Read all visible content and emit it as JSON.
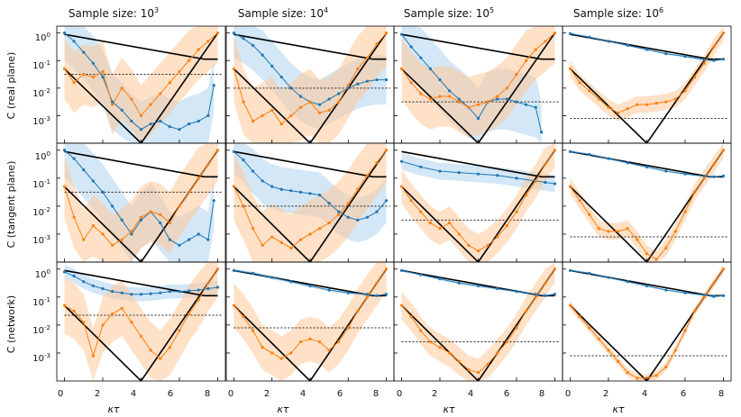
{
  "figure": {
    "column_titles": [
      {
        "base": "Sample size: 10",
        "exp": "3"
      },
      {
        "base": "Sample size: 10",
        "exp": "4"
      },
      {
        "base": "Sample size: 10",
        "exp": "5"
      },
      {
        "base": "Sample size: 10",
        "exp": "6"
      }
    ],
    "row_labels": [
      "C  (real plane)",
      "C  (tangent plane)",
      "C  (network)"
    ],
    "xlabel": "κτ",
    "x_ticks": [
      "0",
      "2",
      "4",
      "6",
      "8"
    ],
    "y_ticks": [
      {
        "base": "10",
        "exp": "0"
      },
      {
        "base": "10",
        "exp": "-1"
      },
      {
        "base": "10",
        "exp": "-2"
      },
      {
        "base": "10",
        "exp": "-3"
      }
    ]
  },
  "chart_data": {
    "type": "line",
    "description_series": [
      "theory curves (black)",
      "blue estimator with band",
      "orange estimator with band",
      "noise floor (dotted)"
    ],
    "xlim": [
      -0.4,
      8.4
    ],
    "ylim_log10": [
      -4.0,
      0.25
    ],
    "colors": {
      "blue": "#1f77b4",
      "orange": "#ff7f0e",
      "blue_band": "#aed3ee",
      "orange_band": "#ffc999",
      "theory": "#000000"
    },
    "floors_log10": [
      [
        -1.5,
        -2.0,
        -2.5,
        -3.1
      ],
      [
        -1.5,
        -2.0,
        -2.5,
        -3.1
      ],
      [
        -1.65,
        -2.1,
        -2.6,
        -3.1
      ]
    ],
    "theory_upper": {
      "x": [
        0,
        7.3,
        8
      ],
      "log10y": [
        -0.05,
        -0.95,
        -0.95
      ]
    },
    "theory_decay": {
      "x": [
        0,
        4
      ],
      "log10y": [
        -1.3,
        -4.3
      ]
    },
    "theory_rise": {
      "x": [
        4,
        8
      ],
      "log10y": [
        -4.3,
        0
      ]
    },
    "blue_panels": [
      {
        "x": [
          0,
          0.5,
          1,
          1.5,
          2,
          2.5,
          3,
          3.5,
          4,
          4.5,
          5,
          5.5,
          6,
          6.5,
          7,
          7.5,
          7.8
        ],
        "log10y": [
          0,
          -0.3,
          -0.7,
          -1.1,
          -1.6,
          -2.5,
          -2.8,
          -3.2,
          -3.5,
          -3.3,
          -3.2,
          -3.4,
          -3.5,
          -3.3,
          -3.2,
          -3.0,
          -1.9
        ]
      },
      {
        "x": [
          0,
          0.5,
          1,
          1.5,
          2,
          2.5,
          3,
          3.5,
          4,
          4.5,
          5,
          5.5,
          6,
          6.5,
          7,
          7.5,
          8
        ],
        "log10y": [
          0,
          -0.2,
          -0.45,
          -0.8,
          -1.2,
          -1.6,
          -2.0,
          -2.3,
          -2.5,
          -2.6,
          -2.4,
          -2.2,
          -2.0,
          -1.85,
          -1.75,
          -1.7,
          -1.7
        ]
      },
      {
        "x": [
          0,
          0.5,
          1,
          1.5,
          2,
          2.5,
          3,
          3.5,
          4,
          4.5,
          5,
          5.5,
          6,
          6.5,
          7,
          7.3
        ],
        "log10y": [
          -0.05,
          -0.5,
          -0.9,
          -1.3,
          -1.7,
          -2.1,
          -2.4,
          -2.7,
          -3.1,
          -2.5,
          -2.4,
          -2.4,
          -2.5,
          -2.6,
          -2.7,
          -3.6
        ]
      },
      {
        "x": [
          0,
          1,
          2,
          3,
          4,
          5,
          6,
          7,
          7.5,
          8
        ],
        "log10y": [
          -0.02,
          -0.15,
          -0.3,
          -0.45,
          -0.6,
          -0.75,
          -0.85,
          -0.97,
          -1.0,
          -0.95
        ]
      },
      {
        "x": [
          0,
          0.5,
          1,
          1.5,
          2,
          2.5,
          3,
          3.5,
          4,
          4.5,
          5,
          5.5,
          6,
          6.5,
          7,
          7.5,
          7.8
        ],
        "log10y": [
          0,
          -0.3,
          -0.7,
          -1.1,
          -1.5,
          -2.0,
          -2.5,
          -3.0,
          -2.5,
          -2.2,
          -2.6,
          -3.2,
          -3.4,
          -3.2,
          -3.0,
          -3.2,
          -1.8
        ]
      },
      {
        "x": [
          0,
          0.5,
          1,
          1.5,
          2,
          2.5,
          3,
          3.5,
          4,
          4.5,
          5,
          5.5,
          6,
          6.5,
          7,
          7.5,
          8
        ],
        "log10y": [
          -0.05,
          -0.35,
          -0.75,
          -1.1,
          -1.3,
          -1.4,
          -1.45,
          -1.5,
          -1.55,
          -1.6,
          -1.9,
          -2.2,
          -2.4,
          -2.5,
          -2.4,
          -2.2,
          -1.8
        ]
      },
      {
        "x": [
          0,
          1,
          2,
          3,
          4,
          5,
          6,
          7,
          7.5,
          8
        ],
        "log10y": [
          -0.4,
          -0.6,
          -0.75,
          -0.8,
          -0.85,
          -0.9,
          -1.0,
          -1.1,
          -1.15,
          -1.2
        ]
      },
      {
        "x": [
          0,
          1,
          2,
          3,
          4,
          5,
          6,
          7,
          7.5,
          8
        ],
        "log10y": [
          -0.05,
          -0.15,
          -0.3,
          -0.45,
          -0.6,
          -0.75,
          -0.85,
          -0.93,
          -0.95,
          -0.92
        ]
      },
      {
        "x": [
          0,
          0.5,
          1,
          1.5,
          2,
          2.5,
          3,
          3.5,
          4,
          4.5,
          5,
          5.5,
          6,
          6.5,
          7,
          7.5,
          8
        ],
        "log10y": [
          -0.1,
          -0.25,
          -0.45,
          -0.6,
          -0.7,
          -0.8,
          -0.85,
          -0.9,
          -0.9,
          -0.88,
          -0.85,
          -0.8,
          -0.8,
          -0.78,
          -0.75,
          -0.7,
          -0.65
        ]
      },
      {
        "x": [
          0,
          1,
          2,
          3,
          4,
          5,
          6,
          7,
          7.5,
          8
        ],
        "log10y": [
          -0.05,
          -0.15,
          -0.3,
          -0.45,
          -0.6,
          -0.75,
          -0.85,
          -0.9,
          -0.95,
          -0.9
        ]
      },
      {
        "x": [
          0,
          1,
          2,
          3,
          4,
          5,
          6,
          7,
          7.5,
          8
        ],
        "log10y": [
          -0.05,
          -0.2,
          -0.35,
          -0.5,
          -0.6,
          -0.7,
          -0.8,
          -0.9,
          -0.95,
          -0.9
        ]
      },
      {
        "x": [
          0,
          1,
          2,
          3,
          4,
          5,
          6,
          7,
          7.5,
          8
        ],
        "log10y": [
          -0.05,
          -0.15,
          -0.3,
          -0.45,
          -0.6,
          -0.75,
          -0.85,
          -0.93,
          -0.98,
          -0.95
        ]
      }
    ],
    "blue_band_halfwidth_log10": [
      1.0,
      0.9,
      1.1,
      0.04,
      1.0,
      0.8,
      0.3,
      0.04,
      0.25,
      0.06,
      0.05,
      0.04
    ],
    "orange_panels": [
      {
        "x": [
          0,
          0.5,
          1,
          1.5,
          2,
          2.5,
          3,
          3.5,
          4,
          4.5,
          5,
          5.5,
          6,
          6.5,
          7,
          7.5,
          8
        ],
        "log10y": [
          -1.3,
          -1.8,
          -1.5,
          -1.6,
          -1.4,
          -2.6,
          -2.0,
          -2.4,
          -3.0,
          -2.6,
          -2.2,
          -1.8,
          -1.4,
          -1.0,
          -0.6,
          -0.3,
          0
        ]
      },
      {
        "x": [
          0,
          0.5,
          1,
          1.5,
          2,
          2.5,
          3,
          3.5,
          4,
          4.5,
          5,
          5.5,
          6,
          6.5,
          7,
          7.5,
          8
        ],
        "log10y": [
          -1.3,
          -2.5,
          -3.2,
          -3.0,
          -2.8,
          -3.3,
          -3.0,
          -2.7,
          -2.5,
          -2.9,
          -2.8,
          -2.5,
          -1.9,
          -1.3,
          -0.9,
          -0.4,
          0
        ]
      },
      {
        "x": [
          0,
          0.5,
          1,
          1.5,
          2,
          2.5,
          3,
          3.5,
          4,
          4.5,
          5,
          5.5,
          6,
          6.5,
          7,
          7.5,
          8
        ],
        "log10y": [
          -1.3,
          -1.8,
          -2.2,
          -2.4,
          -2.3,
          -2.3,
          -2.5,
          -2.7,
          -2.6,
          -2.5,
          -2.3,
          -2.0,
          -1.5,
          -1.0,
          -0.6,
          -0.3,
          0
        ]
      },
      {
        "x": [
          0,
          0.5,
          1,
          1.5,
          2,
          2.5,
          3,
          3.5,
          4,
          4.5,
          5,
          5.5,
          6,
          6.5,
          7,
          7.5,
          8
        ],
        "log10y": [
          -1.3,
          -1.8,
          -2.1,
          -2.4,
          -2.7,
          -2.9,
          -2.75,
          -2.6,
          -2.6,
          -2.55,
          -2.5,
          -2.4,
          -2.1,
          -1.6,
          -1.1,
          -0.5,
          0
        ]
      },
      {
        "x": [
          0,
          0.5,
          1,
          1.5,
          2,
          2.5,
          3,
          3.5,
          4,
          4.5,
          5,
          5.5,
          6,
          6.5,
          7,
          7.5,
          8
        ],
        "log10y": [
          -1.3,
          -2.4,
          -3.2,
          -2.7,
          -3.0,
          -3.4,
          -3.2,
          -2.9,
          -2.4,
          -2.2,
          -2.3,
          -2.6,
          -2.0,
          -1.5,
          -1.0,
          -0.5,
          0
        ]
      },
      {
        "x": [
          0,
          0.5,
          1,
          1.5,
          2,
          2.5,
          3,
          3.5,
          4,
          4.5,
          5,
          5.5,
          6,
          6.5,
          7,
          7.5,
          8
        ],
        "log10y": [
          -1.3,
          -2.0,
          -2.8,
          -3.4,
          -3.1,
          -3.3,
          -3.5,
          -3.2,
          -3.0,
          -2.8,
          -2.6,
          -2.3,
          -1.9,
          -1.4,
          -0.9,
          -0.45,
          0
        ]
      },
      {
        "x": [
          0,
          0.5,
          1,
          1.5,
          2,
          2.5,
          3,
          3.5,
          4,
          4.5,
          5,
          5.5,
          6,
          6.5,
          7,
          7.5,
          8
        ],
        "log10y": [
          -1.3,
          -1.8,
          -2.2,
          -2.6,
          -2.8,
          -2.6,
          -3.0,
          -3.4,
          -3.6,
          -3.4,
          -3.1,
          -2.7,
          -2.2,
          -1.6,
          -1.1,
          -0.5,
          0
        ]
      },
      {
        "x": [
          0,
          0.5,
          1,
          1.5,
          2,
          2.5,
          3,
          3.5,
          4,
          4.5,
          5,
          5.5,
          6,
          6.5,
          7,
          7.5,
          8
        ],
        "log10y": [
          -1.3,
          -1.8,
          -2.3,
          -2.8,
          -2.9,
          -2.9,
          -2.8,
          -3.2,
          -3.7,
          -3.9,
          -3.5,
          -2.9,
          -2.2,
          -1.5,
          -1.0,
          -0.5,
          0
        ]
      },
      {
        "x": [
          0,
          0.5,
          1,
          1.5,
          2,
          2.5,
          3,
          3.5,
          4,
          4.5,
          5,
          5.5,
          6,
          6.5,
          7,
          7.5,
          8
        ],
        "log10y": [
          -1.3,
          -1.5,
          -1.9,
          -3.1,
          -2.0,
          -1.6,
          -1.4,
          -1.9,
          -2.4,
          -2.9,
          -3.2,
          -2.8,
          -2.2,
          -1.6,
          -1.1,
          -0.5,
          0
        ]
      },
      {
        "x": [
          0,
          0.5,
          1,
          1.5,
          2,
          2.5,
          3,
          3.5,
          4,
          4.5,
          5,
          5.5,
          6,
          6.5,
          7,
          7.5,
          8
        ],
        "log10y": [
          -1.3,
          -1.7,
          -2.2,
          -2.8,
          -3.0,
          -3.2,
          -3.0,
          -2.6,
          -2.5,
          -2.6,
          -2.9,
          -2.6,
          -2.1,
          -1.5,
          -1.0,
          -0.5,
          0
        ]
      },
      {
        "x": [
          0,
          0.5,
          1,
          1.5,
          2,
          2.5,
          3,
          3.5,
          4,
          4.5,
          5,
          5.5,
          6,
          6.5,
          7,
          7.5,
          8
        ],
        "log10y": [
          -1.3,
          -1.7,
          -2.2,
          -2.6,
          -2.8,
          -3.0,
          -3.3,
          -3.6,
          -3.7,
          -3.4,
          -3.0,
          -2.6,
          -2.1,
          -1.5,
          -1.0,
          -0.5,
          0
        ]
      },
      {
        "x": [
          0,
          0.5,
          1,
          1.5,
          2,
          2.5,
          3,
          3.5,
          4,
          4.5,
          5,
          5.5,
          6,
          6.5,
          7,
          7.5,
          8
        ],
        "log10y": [
          -1.3,
          -1.7,
          -2.1,
          -2.5,
          -2.9,
          -3.3,
          -3.7,
          -3.9,
          -3.9,
          -3.8,
          -3.5,
          -2.9,
          -2.2,
          -1.5,
          -1.0,
          -0.5,
          0
        ]
      }
    ],
    "orange_band_halfwidth_log10": [
      1.1,
      1.2,
      1.1,
      0.3,
      1.1,
      1.2,
      0.6,
      0.3,
      1.0,
      0.8,
      0.5,
      0.15
    ]
  }
}
